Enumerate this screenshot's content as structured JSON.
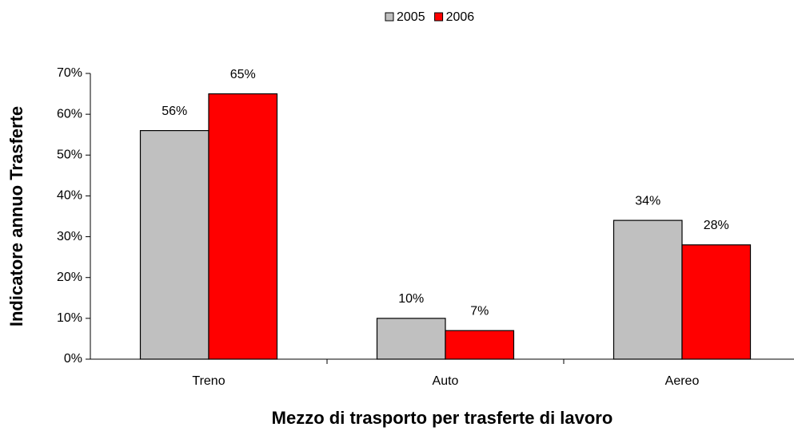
{
  "chart_data": {
    "type": "bar",
    "categories": [
      "Treno",
      "Auto",
      "Aereo"
    ],
    "series": [
      {
        "name": "2005",
        "color": "#c0c0c0",
        "values": [
          56,
          10,
          34
        ],
        "value_labels": [
          "56%",
          "10%",
          "34%"
        ]
      },
      {
        "name": "2006",
        "color": "#ff0000",
        "values": [
          65,
          7,
          28
        ],
        "value_labels": [
          "65%",
          "7%",
          "28%"
        ]
      }
    ],
    "ylim": [
      0,
      70
    ],
    "yticks": [
      {
        "value": 0,
        "label": "0%"
      },
      {
        "value": 10,
        "label": "10%"
      },
      {
        "value": 20,
        "label": "20%"
      },
      {
        "value": 30,
        "label": "30%"
      },
      {
        "value": 40,
        "label": "40%"
      },
      {
        "value": 50,
        "label": "50%"
      },
      {
        "value": 60,
        "label": "60%"
      },
      {
        "value": 70,
        "label": "70%"
      }
    ],
    "y_label": "Indicatore annuo Trasferte",
    "x_label": "Mezzo di trasporto per trasferte di lavoro",
    "legend": "top"
  }
}
